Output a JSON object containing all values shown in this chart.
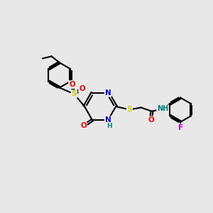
{
  "background_color": "#e8e8e8",
  "line_color": "#000000",
  "bond_width": 1.5,
  "atom_colors": {
    "N": "#0000ff",
    "O": "#ff0000",
    "S": "#cccc00",
    "F": "#cc00cc",
    "H": "#008080",
    "C": "#000000"
  },
  "font_size": 7.5
}
